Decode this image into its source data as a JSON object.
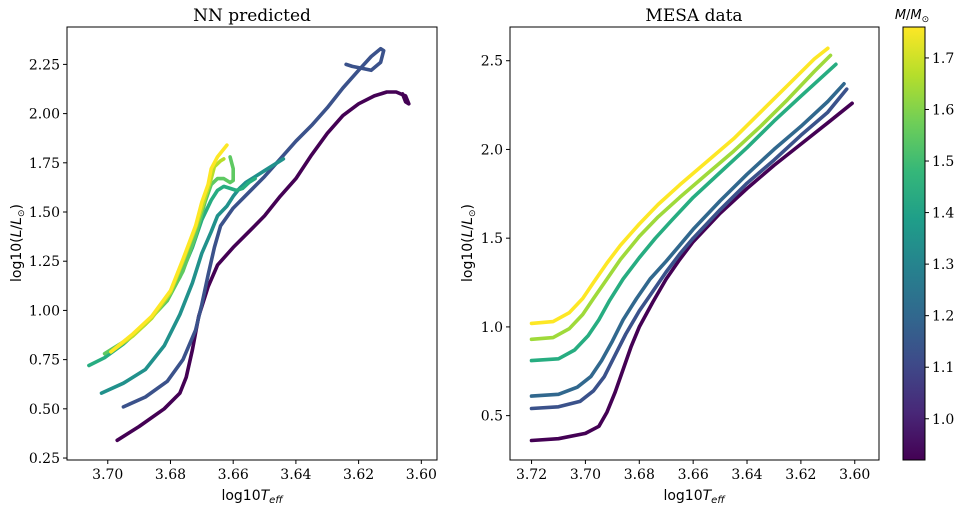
{
  "chart_data": [
    {
      "type": "line",
      "title": "NN predicted",
      "xlabel": "log10T_eff",
      "ylabel": "log10(L/L_⊙)",
      "xlim": [
        3.713,
        3.595
      ],
      "ylim": [
        0.24,
        2.44
      ],
      "x_ticks": [
        3.7,
        3.68,
        3.66,
        3.64,
        3.62,
        3.6
      ],
      "x_tick_labels": [
        "3.70",
        "3.68",
        "3.66",
        "3.64",
        "3.62",
        "3.60"
      ],
      "y_ticks": [
        0.25,
        0.5,
        0.75,
        1.0,
        1.25,
        1.5,
        1.75,
        2.0,
        2.25
      ],
      "y_tick_labels": [
        "0.25",
        "0.50",
        "0.75",
        "1.00",
        "1.25",
        "1.50",
        "1.75",
        "2.00",
        "2.25"
      ],
      "grid": false,
      "series": [
        {
          "mass": 0.95,
          "color": "#440154",
          "x": [
            3.697,
            3.69,
            3.682,
            3.677,
            3.675,
            3.673,
            3.671,
            3.668,
            3.665,
            3.66,
            3.655,
            3.65,
            3.645,
            3.64,
            3.635,
            3.63,
            3.625,
            3.62,
            3.615,
            3.611,
            3.608,
            3.605,
            3.604,
            3.605,
            3.606
          ],
          "y": [
            0.34,
            0.41,
            0.5,
            0.58,
            0.66,
            0.8,
            0.97,
            1.12,
            1.23,
            1.32,
            1.4,
            1.48,
            1.58,
            1.67,
            1.79,
            1.9,
            1.99,
            2.05,
            2.09,
            2.11,
            2.11,
            2.09,
            2.05,
            2.06,
            2.1
          ]
        },
        {
          "mass": 1.1,
          "color": "#3b528b",
          "x": [
            3.695,
            3.688,
            3.681,
            3.676,
            3.672,
            3.67,
            3.668,
            3.666,
            3.664,
            3.66,
            3.655,
            3.65,
            3.645,
            3.64,
            3.635,
            3.63,
            3.625,
            3.62,
            3.616,
            3.613,
            3.612,
            3.613,
            3.616,
            3.619,
            3.622,
            3.624
          ],
          "y": [
            0.51,
            0.56,
            0.64,
            0.75,
            0.9,
            1.03,
            1.18,
            1.32,
            1.43,
            1.52,
            1.6,
            1.68,
            1.77,
            1.86,
            1.94,
            2.03,
            2.13,
            2.22,
            2.29,
            2.33,
            2.32,
            2.26,
            2.22,
            2.23,
            2.24,
            2.25
          ]
        },
        {
          "mass": 1.25,
          "color": "#21918c",
          "x": [
            3.702,
            3.695,
            3.688,
            3.682,
            3.677,
            3.673,
            3.67,
            3.667,
            3.665,
            3.662,
            3.66,
            3.658,
            3.656,
            3.653,
            3.65,
            3.647,
            3.644
          ],
          "y": [
            0.58,
            0.63,
            0.7,
            0.82,
            0.98,
            1.14,
            1.29,
            1.4,
            1.48,
            1.53,
            1.58,
            1.62,
            1.65,
            1.68,
            1.71,
            1.74,
            1.77
          ]
        },
        {
          "mass": 1.45,
          "color": "#27ad81",
          "x": [
            3.706,
            3.701,
            3.695,
            3.688,
            3.682,
            3.677,
            3.673,
            3.67,
            3.667,
            3.665,
            3.663,
            3.661,
            3.659,
            3.657,
            3.655,
            3.653
          ],
          "y": [
            0.72,
            0.76,
            0.83,
            0.93,
            1.04,
            1.17,
            1.32,
            1.46,
            1.56,
            1.61,
            1.63,
            1.62,
            1.61,
            1.62,
            1.65,
            1.67
          ]
        },
        {
          "mass": 1.6,
          "color": "#5ec962",
          "x": [
            3.701,
            3.695,
            3.688,
            3.681,
            3.676,
            3.672,
            3.669,
            3.667,
            3.665,
            3.663,
            3.661,
            3.66,
            3.66,
            3.661
          ],
          "y": [
            0.78,
            0.84,
            0.93,
            1.05,
            1.2,
            1.38,
            1.55,
            1.64,
            1.67,
            1.67,
            1.65,
            1.66,
            1.72,
            1.78
          ]
        },
        {
          "mass": 1.7,
          "color": "#b8de29",
          "x": [
            3.699,
            3.692,
            3.686,
            3.68,
            3.676,
            3.672,
            3.669,
            3.667,
            3.666,
            3.664,
            3.663
          ],
          "y": [
            0.79,
            0.87,
            0.96,
            1.09,
            1.25,
            1.42,
            1.57,
            1.67,
            1.73,
            1.76,
            1.77
          ]
        },
        {
          "mass": 1.75,
          "color": "#fde725",
          "x": [
            3.699,
            3.692,
            3.686,
            3.68,
            3.676,
            3.672,
            3.67,
            3.668,
            3.667,
            3.665,
            3.663,
            3.662
          ],
          "y": [
            0.79,
            0.88,
            0.97,
            1.1,
            1.26,
            1.43,
            1.55,
            1.64,
            1.72,
            1.78,
            1.82,
            1.84
          ]
        }
      ]
    },
    {
      "type": "line",
      "title": "MESA data",
      "xlabel": "log10T_eff",
      "ylabel": "log10(L/L_⊙)",
      "xlim": [
        3.728,
        3.591
      ],
      "ylim": [
        0.25,
        2.69
      ],
      "x_ticks": [
        3.72,
        3.7,
        3.68,
        3.66,
        3.64,
        3.62,
        3.6
      ],
      "x_tick_labels": [
        "3.72",
        "3.70",
        "3.68",
        "3.66",
        "3.64",
        "3.62",
        "3.60"
      ],
      "y_ticks": [
        0.5,
        1.0,
        1.5,
        2.0,
        2.5
      ],
      "y_tick_labels": [
        "0.5",
        "1.0",
        "1.5",
        "2.0",
        "2.5"
      ],
      "grid": false,
      "series": [
        {
          "mass": 0.95,
          "color": "#440154",
          "x": [
            3.72,
            3.71,
            3.7,
            3.695,
            3.692,
            3.689,
            3.686,
            3.683,
            3.68,
            3.675,
            3.67,
            3.665,
            3.66,
            3.65,
            3.64,
            3.63,
            3.62,
            3.61,
            3.601
          ],
          "y": [
            0.36,
            0.37,
            0.4,
            0.44,
            0.52,
            0.63,
            0.76,
            0.89,
            1.0,
            1.14,
            1.27,
            1.38,
            1.48,
            1.64,
            1.78,
            1.91,
            2.03,
            2.15,
            2.26
          ]
        },
        {
          "mass": 1.1,
          "color": "#3b528b",
          "x": [
            3.72,
            3.71,
            3.702,
            3.697,
            3.693,
            3.689,
            3.685,
            3.68,
            3.675,
            3.67,
            3.665,
            3.66,
            3.65,
            3.64,
            3.63,
            3.62,
            3.61,
            3.603
          ],
          "y": [
            0.54,
            0.55,
            0.58,
            0.64,
            0.72,
            0.84,
            0.96,
            1.09,
            1.2,
            1.31,
            1.41,
            1.5,
            1.66,
            1.81,
            1.94,
            2.08,
            2.21,
            2.34
          ]
        },
        {
          "mass": 1.2,
          "color": "#31688e",
          "x": [
            3.72,
            3.71,
            3.703,
            3.698,
            3.694,
            3.69,
            3.686,
            3.681,
            3.676,
            3.67,
            3.665,
            3.66,
            3.65,
            3.64,
            3.63,
            3.62,
            3.61,
            3.604
          ],
          "y": [
            0.61,
            0.62,
            0.66,
            0.72,
            0.81,
            0.92,
            1.04,
            1.16,
            1.27,
            1.37,
            1.46,
            1.55,
            1.71,
            1.86,
            2.0,
            2.13,
            2.27,
            2.37
          ]
        },
        {
          "mass": 1.45,
          "color": "#27ad81",
          "x": [
            3.72,
            3.71,
            3.704,
            3.699,
            3.695,
            3.691,
            3.686,
            3.68,
            3.674,
            3.668,
            3.66,
            3.65,
            3.64,
            3.63,
            3.62,
            3.607
          ],
          "y": [
            0.81,
            0.82,
            0.87,
            0.95,
            1.04,
            1.15,
            1.27,
            1.39,
            1.5,
            1.6,
            1.73,
            1.87,
            2.01,
            2.16,
            2.3,
            2.48
          ]
        },
        {
          "mass": 1.6,
          "color": "#9fda3a",
          "x": [
            3.72,
            3.712,
            3.706,
            3.701,
            3.697,
            3.692,
            3.687,
            3.68,
            3.673,
            3.665,
            3.655,
            3.645,
            3.635,
            3.625,
            3.615,
            3.609
          ],
          "y": [
            0.93,
            0.94,
            0.99,
            1.07,
            1.16,
            1.27,
            1.38,
            1.51,
            1.62,
            1.73,
            1.86,
            1.99,
            2.13,
            2.28,
            2.44,
            2.53
          ]
        },
        {
          "mass": 1.75,
          "color": "#fde725",
          "x": [
            3.72,
            3.712,
            3.706,
            3.701,
            3.697,
            3.692,
            3.687,
            3.68,
            3.673,
            3.665,
            3.655,
            3.645,
            3.635,
            3.625,
            3.615,
            3.61
          ],
          "y": [
            1.02,
            1.03,
            1.08,
            1.16,
            1.25,
            1.36,
            1.46,
            1.58,
            1.69,
            1.8,
            1.93,
            2.06,
            2.21,
            2.36,
            2.51,
            2.57
          ]
        }
      ]
    }
  ],
  "colorbar": {
    "label": "M/M_⊙",
    "range": [
      0.92,
      1.76
    ],
    "ticks": [
      1.0,
      1.1,
      1.2,
      1.3,
      1.4,
      1.5,
      1.6,
      1.7
    ],
    "tick_labels": [
      "1.0",
      "1.1",
      "1.2",
      "1.3",
      "1.4",
      "1.5",
      "1.6",
      "1.7"
    ],
    "colormap": [
      "#440154",
      "#482878",
      "#3e4a89",
      "#31688e",
      "#26828e",
      "#1f9e89",
      "#35b779",
      "#6ece58",
      "#b5de2b",
      "#fde725"
    ]
  },
  "text": {
    "left_title": "NN predicted",
    "right_title": "MESA data",
    "xlabel_base": "log10",
    "xlabel_var": "T",
    "xlabel_sub": "eff",
    "ylabel_base": "log10(",
    "ylabel_var": "L",
    "ylabel_slash": "/",
    "ylabel_sym": "L",
    "ylabel_sun": "⊙",
    "ylabel_close": ")",
    "cb_var": "M",
    "cb_slash": "/",
    "cb_sym": "M",
    "cb_sun": "⊙"
  }
}
